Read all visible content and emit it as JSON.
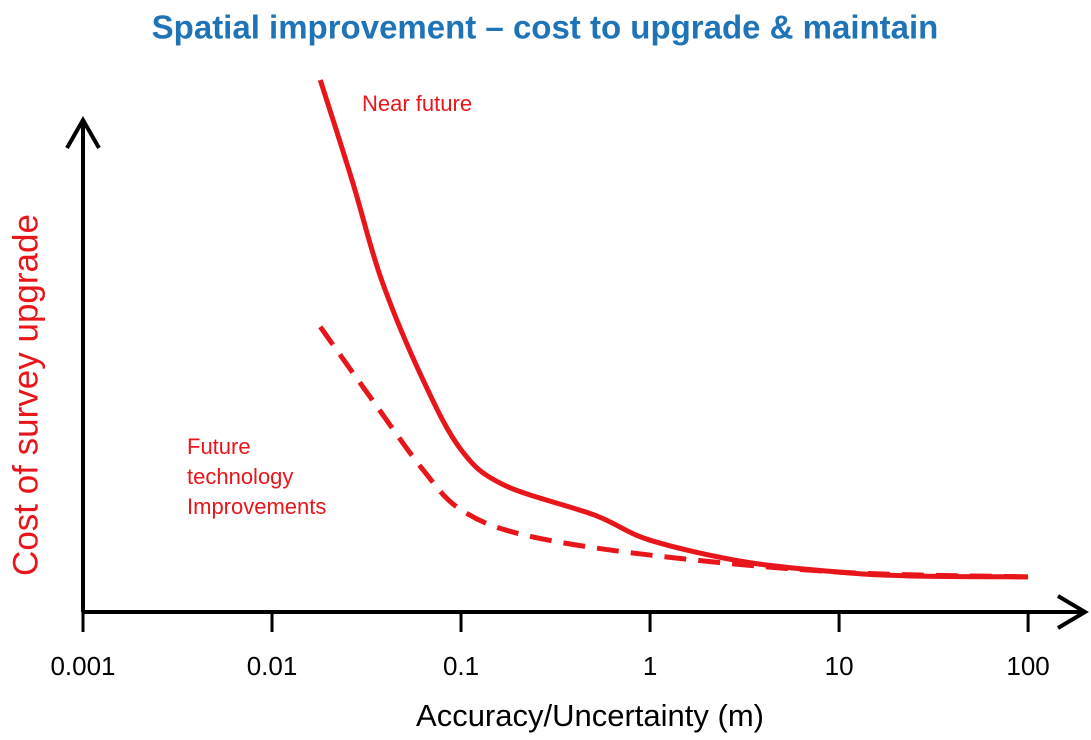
{
  "chart_data": {
    "type": "line",
    "title": "Spatial improvement – cost to upgrade & maintain",
    "x_label": "Accuracy/Uncertainty (m)",
    "y_label": "Cost of survey upgrade",
    "x_scale": "log",
    "xlim": [
      0.001,
      200
    ],
    "xticks": [
      0.001,
      0.01,
      0.1,
      1,
      10,
      100
    ],
    "ylim": [
      0,
      100
    ],
    "series": [
      {
        "name": "Near future",
        "color": "#e8161b",
        "style": "solid",
        "x": [
          0.018,
          0.0266,
          0.038,
          0.063,
          0.1,
          0.168,
          0.51,
          1,
          3.2,
          10,
          22.9,
          100
        ],
        "values": [
          100,
          81,
          62.4,
          43.6,
          30.5,
          23.9,
          18.2,
          13.5,
          9.4,
          7.5,
          6.8,
          6.6
        ]
      },
      {
        "name": "Future technology Improvements",
        "color": "#e8161b",
        "style": "dashed",
        "x": [
          0.018,
          0.034,
          0.063,
          0.1,
          0.215,
          1,
          10,
          100
        ],
        "values": [
          53.6,
          39.8,
          26.7,
          19.2,
          14.5,
          10.7,
          7.5,
          6.6
        ]
      }
    ]
  }
}
